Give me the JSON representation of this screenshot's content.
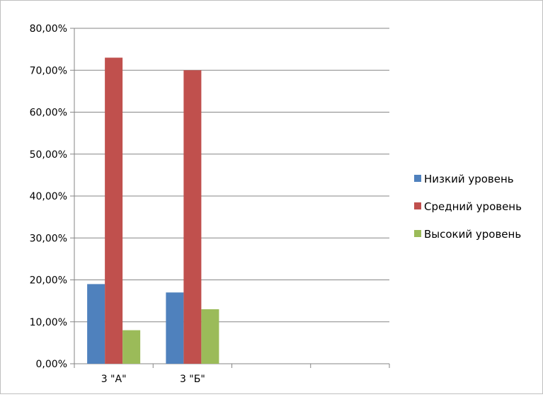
{
  "chart_data": {
    "type": "bar",
    "categories": [
      "3 \"А\"",
      "3 \"Б\"",
      "",
      ""
    ],
    "series": [
      {
        "name": "Низкий уровень",
        "color": "#4f81bd",
        "values": [
          19,
          17,
          null,
          null
        ]
      },
      {
        "name": "Средний уровень",
        "color": "#c0504d",
        "values": [
          73,
          70,
          null,
          null
        ]
      },
      {
        "name": "Высокий уровень",
        "color": "#9bbb59",
        "values": [
          8,
          13,
          null,
          null
        ]
      }
    ],
    "ylim": [
      0,
      80
    ],
    "yticks": [
      0,
      10,
      20,
      30,
      40,
      50,
      60,
      70,
      80
    ],
    "ytick_labels": [
      "0,00%",
      "10,00%",
      "20,00%",
      "30,00%",
      "40,00%",
      "50,00%",
      "60,00%",
      "70,00%",
      "80,00%"
    ],
    "grid": true,
    "legend_position": "right",
    "title": "",
    "xlabel": "",
    "ylabel": ""
  }
}
